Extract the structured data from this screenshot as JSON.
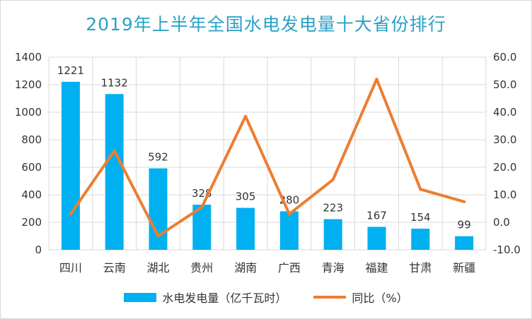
{
  "chart_data": {
    "type": "bar",
    "title": "2019年上半年全国水电发电量十大省份排行",
    "categories": [
      "四川",
      "云南",
      "湖北",
      "贵州",
      "湖南",
      "广西",
      "青海",
      "福建",
      "甘肃",
      "新疆"
    ],
    "series": [
      {
        "name": "水电发电量（亿千瓦时）",
        "type": "bar",
        "axis": "left",
        "color": "#00b0f0",
        "values": [
          1221,
          1132,
          592,
          328,
          305,
          280,
          223,
          167,
          154,
          99
        ],
        "data_labels": [
          "1221",
          "1132",
          "592",
          "328",
          "305",
          "280",
          "223",
          "167",
          "154",
          "99"
        ]
      },
      {
        "name": "同比（%）",
        "type": "line",
        "axis": "right",
        "color": "#ed7d31",
        "values": [
          3.0,
          26.0,
          -5.0,
          5.5,
          38.5,
          3.0,
          15.5,
          52.0,
          12.0,
          7.5
        ]
      }
    ],
    "y_left": {
      "range": [
        0,
        1400
      ],
      "ticks": [
        "0",
        "200",
        "400",
        "600",
        "800",
        "1000",
        "1200",
        "1400"
      ]
    },
    "y_right": {
      "range": [
        -10,
        60
      ],
      "ticks": [
        "-10.0",
        "0.0",
        "10.0",
        "20.0",
        "30.0",
        "40.0",
        "50.0",
        "60.0"
      ]
    },
    "grid": true,
    "legend_position": "bottom"
  }
}
